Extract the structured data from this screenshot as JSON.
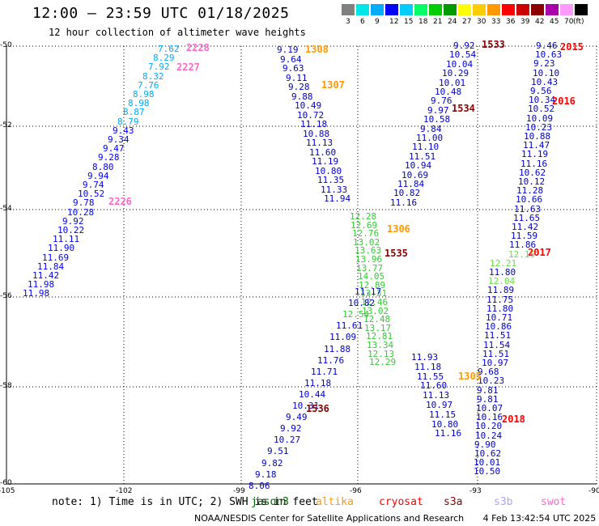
{
  "title": "12:00 – 23:59 UTC 01/18/2025",
  "subtitle": "12 hour collection of altimeter wave heights",
  "colorbar": {
    "labels": [
      "3",
      "6",
      "9",
      "12",
      "15",
      "18",
      "21",
      "24",
      "27",
      "30",
      "33",
      "36",
      "39",
      "42",
      "45",
      "70",
      "(ft)"
    ],
    "colors": [
      "#808080",
      "#00e6e6",
      "#00aaff",
      "#0000ff",
      "#00ccff",
      "#00ff66",
      "#00cc00",
      "#009900",
      "#ffff00",
      "#ffcc00",
      "#ff9900",
      "#ff0000",
      "#cc0000",
      "#8b0000",
      "#aa00aa",
      "#ff99ff",
      "#000000"
    ]
  },
  "axes": {
    "y_ticks": [
      "-50",
      "-52",
      "-54",
      "-56",
      "-58",
      "-60"
    ],
    "x_ticks": [
      "-105",
      "-102",
      "-99",
      "-96",
      "-93",
      "-90"
    ]
  },
  "note": "note: 1) Time is in UTC; 2) SWH is in feet",
  "satellites": [
    {
      "name": "jason3",
      "color": "#006400"
    },
    {
      "name": "altika",
      "color": "#ff9900"
    },
    {
      "name": "cryosat",
      "color": "#ff0000"
    },
    {
      "name": "s3a",
      "color": "#8b0000"
    },
    {
      "name": "s3b",
      "color": "#b0a0ff"
    },
    {
      "name": "swot",
      "color": "#ff66cc"
    }
  ],
  "credit": "NOAA/NESDIS Center for Satellite Applications and Research",
  "timestamp": "4 Feb 13:42:54 UTC 2025",
  "passes": [
    {
      "label": "2228",
      "color": "#ff66cc"
    },
    {
      "label": "2227",
      "color": "#ff66cc"
    },
    {
      "label": "2226",
      "color": "#ff66cc"
    },
    {
      "label": "1308",
      "color": "#ff9900"
    },
    {
      "label": "1307",
      "color": "#ff9900"
    },
    {
      "label": "1306",
      "color": "#ff9900"
    },
    {
      "label": "1305",
      "color": "#ff9900"
    },
    {
      "label": "1533",
      "color": "#8b0000"
    },
    {
      "label": "1534",
      "color": "#8b0000"
    },
    {
      "label": "1535",
      "color": "#8b0000"
    },
    {
      "label": "1536",
      "color": "#8b0000"
    },
    {
      "label": "2015",
      "color": "#ff0000"
    },
    {
      "label": "2016",
      "color": "#ff0000"
    },
    {
      "label": "2017",
      "color": "#ff0000"
    },
    {
      "label": "2018",
      "color": "#ff0000"
    }
  ],
  "tracks": [
    {
      "name": "swot-track-1",
      "color_hi": "#00aaff",
      "color_lo": "#0000ff",
      "values": [
        "7.62",
        "8.29",
        "7.92",
        "8.32",
        "7.76",
        "8.98",
        "8.98",
        "8.87",
        "8.79",
        "9.43",
        "9.34",
        "9.47",
        "9.28",
        "8.80",
        "9.94",
        "9.74",
        "10.52",
        "9.78",
        "10.28",
        "9.92",
        "10.22",
        "11.11",
        "11.90",
        "11.69",
        "11.84",
        "11.42",
        "11.98",
        "11.98"
      ]
    },
    {
      "name": "altika-track-1",
      "color_hi": "#0000cc",
      "color_lo": "#0000cc",
      "values": [
        "9.19",
        "9.64",
        "9.63",
        "9.11",
        "9.28",
        "9.88",
        "10.49",
        "10.72",
        "11.18",
        "10.88",
        "11.13",
        "11.60",
        "11.19",
        "10.80",
        "11.35",
        "11.33",
        "11.94"
      ]
    },
    {
      "name": "jason-track-1",
      "color_hi": "#33cc33",
      "color_lo": "#33cc33",
      "values": [
        "12.28",
        "12.69",
        "12.76",
        "13.02",
        "13.63",
        "13.96",
        "13.77",
        "14.05",
        "12.89",
        "13.31",
        "12.46",
        "13.02",
        "12.48",
        "13.17",
        "12.81",
        "13.34",
        "12.13",
        "12.29"
      ]
    },
    {
      "name": "s3a-track-1",
      "color_hi": "#0000cc",
      "color_lo": "#0000cc",
      "values": [
        "9.92",
        "10.54",
        "10.04",
        "10.29",
        "10.01",
        "10.48",
        "9.76",
        "9.97",
        "10.58",
        "9.84",
        "11.00",
        "11.10",
        "11.51",
        "10.94",
        "10.69",
        "11.84",
        "10.82",
        "11.16"
      ]
    },
    {
      "name": "cryosat-track-1",
      "color_hi": "#0000cc",
      "color_lo": "#0000cc",
      "values": [
        "9.46",
        "10.63",
        "9.23",
        "10.10",
        "10.43",
        "9.56",
        "10.34",
        "10.52",
        "10.09",
        "10.23",
        "10.88",
        "11.47",
        "11.19",
        "11.16",
        "10.62",
        "10.12",
        "11.28",
        "10.66",
        "11.63",
        "11.65",
        "11.42",
        "11.59",
        "11.86",
        "12.15",
        "12.21",
        "11.80",
        "12.04",
        "11.89",
        "11.75",
        "11.80",
        "10.71",
        "10.86",
        "11.51",
        "11.54",
        "11.51",
        "10.97",
        "9.68",
        "10.23",
        "9.81",
        "9.81",
        "10.07",
        "10.16",
        "10.20",
        "10.24",
        "9.90",
        "10.62",
        "10.01",
        "10.50"
      ]
    },
    {
      "name": "altika-track-2",
      "color_hi": "#0000cc",
      "color_lo": "#0000cc",
      "values": [
        "11.17",
        "10.82",
        "12.54",
        "11.61",
        "11.09",
        "11.88",
        "11.76",
        "11.71",
        "11.18",
        "10.44",
        "10.31",
        "9.49",
        "9.92",
        "10.27",
        "9.51",
        "9.82",
        "9.18",
        "8.06"
      ]
    },
    {
      "name": "s3a-track-2",
      "color_hi": "#0000cc",
      "color_lo": "#0000cc",
      "values": [
        "11.93",
        "11.18",
        "11.55",
        "11.60",
        "11.13",
        "10.97",
        "11.15",
        "10.80",
        "11.16"
      ]
    }
  ]
}
